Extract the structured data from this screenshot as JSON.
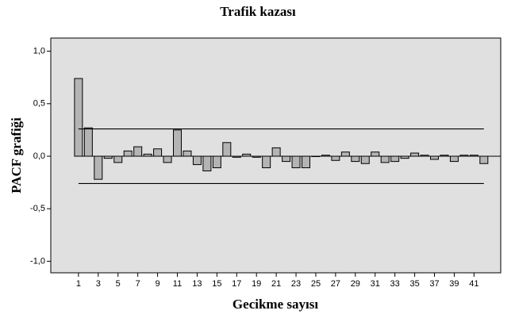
{
  "chart_data": {
    "type": "bar",
    "title": "Trafik kazası",
    "x_label": "Gecikme sayısı",
    "y_label": "PACF grafiği",
    "x": [
      1,
      2,
      3,
      4,
      5,
      6,
      7,
      8,
      9,
      10,
      11,
      12,
      13,
      14,
      15,
      16,
      17,
      18,
      19,
      20,
      21,
      22,
      23,
      24,
      25,
      26,
      27,
      28,
      29,
      30,
      31,
      32,
      33,
      34,
      35,
      36,
      37,
      38,
      39,
      40,
      41,
      42
    ],
    "values": [
      0.74,
      0.27,
      -0.22,
      -0.02,
      -0.06,
      0.05,
      0.09,
      0.02,
      0.07,
      -0.06,
      0.25,
      0.05,
      -0.08,
      -0.14,
      -0.11,
      0.13,
      -0.01,
      0.02,
      -0.01,
      -0.11,
      0.08,
      -0.05,
      -0.11,
      -0.11,
      0.0,
      0.01,
      -0.04,
      0.04,
      -0.05,
      -0.07,
      0.04,
      -0.06,
      -0.05,
      -0.02,
      0.03,
      0.01,
      -0.03,
      0.01,
      -0.05,
      0.01,
      0.01,
      -0.07
    ],
    "color": "#b4b4b4",
    "confidence_limits": [
      -0.26,
      0.26
    ],
    "xlim": [
      -1.8,
      43.7
    ],
    "xticks": [
      1,
      3,
      5,
      7,
      9,
      11,
      13,
      15,
      17,
      19,
      21,
      23,
      25,
      27,
      29,
      31,
      33,
      35,
      37,
      39,
      41
    ],
    "ylim": [
      -1.11,
      1.125
    ],
    "yticks": [
      {
        "value": -1.0,
        "label": "-1,0"
      },
      {
        "value": -0.5,
        "label": "-0,5"
      },
      {
        "value": 0.0,
        "label": "0,0"
      },
      {
        "value": 0.5,
        "label": "0,5"
      },
      {
        "value": 1.0,
        "label": "1,0"
      }
    ],
    "grid": false
  }
}
